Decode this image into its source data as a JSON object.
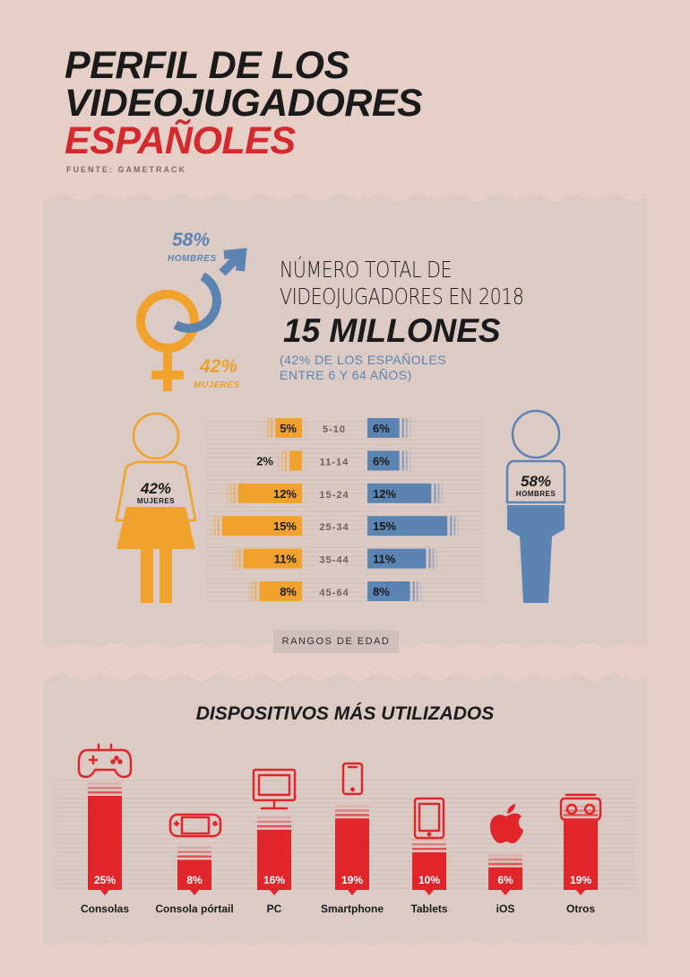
{
  "title": {
    "line1": "PERFIL DE LOS",
    "line2": "VIDEOJUGADORES",
    "line3": "ESPAÑOLES"
  },
  "source": "FUENTE: GAMETRACK",
  "summary": {
    "men_pct": "58%",
    "men_label": "HOMBRES",
    "women_pct": "42%",
    "women_label": "MUJERES",
    "total_label_1": "NÚMERO TOTAL DE",
    "total_label_2": "VIDEOJUGADORES EN 2018",
    "total_value": "15 MILLONES",
    "note_1": "(42% DE LOS ESPAÑOLES",
    "note_2": "ENTRE 6 Y 64 AÑOS)"
  },
  "figures": {
    "women_pct": "42%",
    "women_label": "MUJERES",
    "men_pct": "58%",
    "men_label": "HOMBRES"
  },
  "age_badge": "RANGOS DE EDAD",
  "devices_title": "DISPOSITIVOS MÁS UTILIZADOS",
  "colors": {
    "women": "#f0a22c",
    "men": "#5b84b2",
    "devices": "#e1262b",
    "background": "#e6cfc6",
    "panel": "#dfcbc4"
  },
  "chart_data": [
    {
      "type": "bar",
      "categories": [
        "5-10",
        "11-14",
        "15-24",
        "25-34",
        "35-44",
        "45-64"
      ],
      "series": [
        {
          "name": "MUJERES",
          "values": [
            5,
            2,
            12,
            15,
            11,
            8
          ],
          "labels": [
            "5%",
            "2%",
            "12%",
            "15%",
            "11%",
            "8%"
          ]
        },
        {
          "name": "HOMBRES",
          "values": [
            6,
            6,
            12,
            15,
            11,
            8
          ],
          "labels": [
            "6%",
            "6%",
            "12%",
            "15%",
            "11%",
            "8%"
          ]
        }
      ]
    },
    {
      "type": "bar",
      "title": "DISPOSITIVOS MÁS UTILIZADOS",
      "categories": [
        "Consolas",
        "Consola pórtail",
        "PC",
        "Smartphone",
        "Tablets",
        "iOS",
        "Otros"
      ],
      "values": [
        25,
        8,
        16,
        19,
        10,
        6,
        19
      ],
      "labels": [
        "25%",
        "8%",
        "16%",
        "19%",
        "10%",
        "6%",
        "19%"
      ],
      "icons": [
        "gamepad-icon",
        "handheld-console-icon",
        "monitor-icon",
        "smartphone-icon",
        "tablet-icon",
        "apple-icon",
        "vr-headset-icon"
      ]
    }
  ]
}
